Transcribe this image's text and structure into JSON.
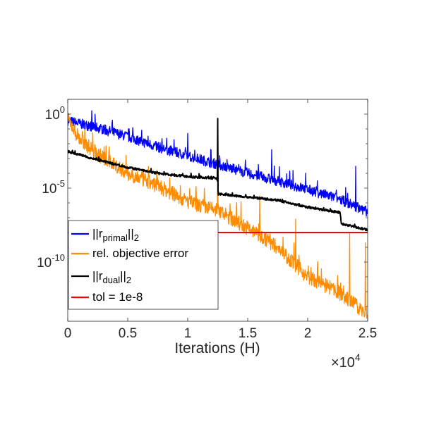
{
  "chart_data": {
    "type": "line",
    "xlabel": "Iterations (H)",
    "x_exponent_label": "×10",
    "x_exponent_power": "4",
    "x_scale_factor": 10000,
    "xlim": [
      0,
      25000
    ],
    "ylim": [
      1e-14,
      10
    ],
    "y_scale": "log",
    "grid": false,
    "legend_location": "lower-left",
    "x_ticks": [
      {
        "value": 0,
        "label": "0"
      },
      {
        "value": 5000,
        "label": "0.5"
      },
      {
        "value": 10000,
        "label": "1"
      },
      {
        "value": 15000,
        "label": "1.5"
      },
      {
        "value": 20000,
        "label": "2"
      },
      {
        "value": 25000,
        "label": "2.5"
      }
    ],
    "y_ticks": [
      {
        "value": 1,
        "base": "10",
        "exp": "0"
      },
      {
        "value": 1e-05,
        "base": "10",
        "exp": "-5"
      },
      {
        "value": 1e-10,
        "base": "10",
        "exp": "-10"
      }
    ],
    "series": [
      {
        "name": "||r_primal||_2",
        "legend": {
          "pre": "||r",
          "sub": "primal",
          "post": "||",
          "sub2": "2"
        },
        "color": "#0000ff",
        "points": [
          [
            0,
            0.35
          ],
          [
            2500,
            0.12
          ],
          [
            5000,
            0.03
          ],
          [
            7500,
            0.006
          ],
          [
            10000,
            0.0015
          ],
          [
            12500,
            0.0004
          ],
          [
            15000,
            0.0001
          ],
          [
            17500,
            3e-05
          ],
          [
            20000,
            8e-06
          ],
          [
            22500,
            2e-06
          ],
          [
            25000,
            2.5e-07
          ]
        ],
        "noise_decades": 0.7,
        "spikes": [
          [
            10000,
            0.05
          ],
          [
            12500,
            0.15
          ],
          [
            17000,
            0.004
          ],
          [
            24000,
            0.0003
          ]
        ]
      },
      {
        "name": "rel. objective error",
        "legend": {
          "pre": "rel. objective error"
        },
        "color": "#ff8c00",
        "points": [
          [
            0,
            0.5
          ],
          [
            1000,
            0.02
          ],
          [
            2500,
            0.002
          ],
          [
            5000,
            0.0001
          ],
          [
            7500,
            1.5e-05
          ],
          [
            10000,
            1.2e-06
          ],
          [
            12500,
            3e-07
          ],
          [
            15000,
            2e-08
          ],
          [
            17500,
            1e-09
          ],
          [
            20000,
            1e-11
          ],
          [
            22500,
            1e-12
          ],
          [
            25000,
            3e-14
          ]
        ],
        "noise_decades": 1.0,
        "spikes": [
          [
            12500,
            0.005
          ],
          [
            16000,
            3e-06
          ],
          [
            19000,
            8e-08
          ],
          [
            23500,
            1e-08
          ],
          [
            24800,
            2e-09
          ]
        ]
      },
      {
        "name": "||r_dual||_2",
        "legend": {
          "pre": "||r",
          "sub": "dual",
          "post": "||",
          "sub2": "2"
        },
        "color": "#000000",
        "points": [
          [
            0,
            0.003
          ],
          [
            2500,
            0.0008
          ],
          [
            5000,
            0.00025
          ],
          [
            7500,
            0.0001
          ],
          [
            10000,
            6e-05
          ],
          [
            12450,
            4.5e-05
          ],
          [
            12550,
            4e-06
          ],
          [
            15000,
            2.5e-06
          ],
          [
            17500,
            1.5e-06
          ],
          [
            20000,
            5e-07
          ],
          [
            22700,
            2.2e-07
          ],
          [
            22800,
            4e-08
          ],
          [
            25000,
            1.5e-08
          ]
        ],
        "noise_decades": 0.15,
        "spikes": [
          [
            12500,
            0.5
          ]
        ]
      },
      {
        "name": "tol = 1e-8",
        "legend": {
          "pre": "tol = 1e-8"
        },
        "color": "#ff0000",
        "points": [
          [
            0,
            1e-08
          ],
          [
            25000,
            1e-08
          ]
        ],
        "noise_decades": 0,
        "spikes": []
      }
    ]
  }
}
